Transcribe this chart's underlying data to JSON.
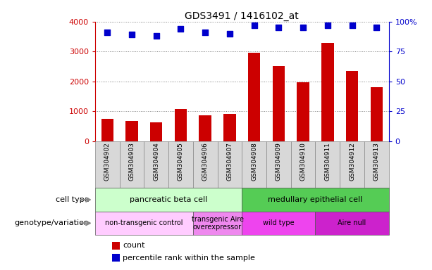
{
  "title": "GDS3491 / 1416102_at",
  "samples": [
    "GSM304902",
    "GSM304903",
    "GSM304904",
    "GSM304905",
    "GSM304906",
    "GSM304907",
    "GSM304908",
    "GSM304909",
    "GSM304910",
    "GSM304911",
    "GSM304912",
    "GSM304913"
  ],
  "counts": [
    750,
    670,
    620,
    1080,
    870,
    900,
    2960,
    2520,
    1960,
    3290,
    2350,
    1810
  ],
  "percentile_ranks": [
    91,
    89,
    88,
    94,
    91,
    90,
    97,
    95,
    95,
    97,
    97,
    95
  ],
  "bar_color": "#cc0000",
  "dot_color": "#0000cc",
  "left_ylim": [
    0,
    4000
  ],
  "left_yticks": [
    0,
    1000,
    2000,
    3000,
    4000
  ],
  "right_ylim": [
    0,
    100
  ],
  "right_yticks": [
    0,
    25,
    50,
    75,
    100
  ],
  "right_yticklabels": [
    "0",
    "25",
    "50",
    "75",
    "100%"
  ],
  "cell_type_labels": [
    {
      "label": "pancreatic beta cell",
      "start": 0,
      "end": 6,
      "color": "#ccffcc"
    },
    {
      "label": "medullary epithelial cell",
      "start": 6,
      "end": 12,
      "color": "#55cc55"
    }
  ],
  "genotype_labels": [
    {
      "label": "non-transgenic control",
      "start": 0,
      "end": 4,
      "color": "#ffccff"
    },
    {
      "label": "transgenic Aire\noverexpressor",
      "start": 4,
      "end": 6,
      "color": "#ee88ee"
    },
    {
      "label": "wild type",
      "start": 6,
      "end": 9,
      "color": "#ee44ee"
    },
    {
      "label": "Aire null",
      "start": 9,
      "end": 12,
      "color": "#cc22cc"
    }
  ],
  "cell_type_row_label": "cell type",
  "genotype_row_label": "genotype/variation",
  "legend_count_label": "count",
  "legend_pct_label": "percentile rank within the sample",
  "left_axis_color": "#cc0000",
  "right_axis_color": "#0000cc",
  "bg_color": "#d8d8d8",
  "grid_color": "#555555"
}
